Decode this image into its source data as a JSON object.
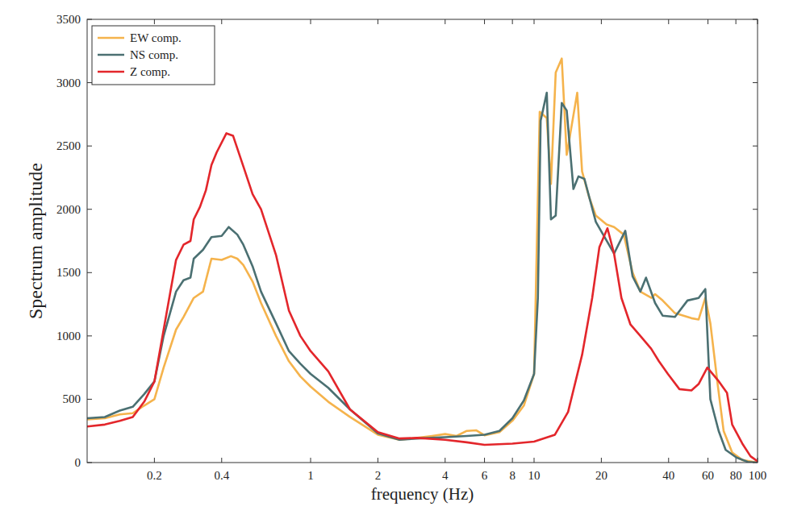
{
  "chart_data": {
    "type": "line",
    "xlabel": "frequency (Hz)",
    "ylabel": "Spectrum amplitude",
    "log": "x",
    "grid": false,
    "legend": "upper left",
    "xlim": [
      0.1,
      100
    ],
    "ylim": [
      0,
      3500
    ],
    "xticks": [
      0.2,
      0.4,
      1,
      2,
      4,
      6,
      8,
      10,
      20,
      40,
      60,
      80,
      100
    ],
    "yticks": [
      0,
      500,
      1000,
      1500,
      2000,
      2500,
      3000,
      3500
    ],
    "series": [
      {
        "name": "EW comp.",
        "color": "#f5b34c",
        "x": [
          0.1,
          0.12,
          0.14,
          0.16,
          0.18,
          0.2,
          0.22,
          0.25,
          0.27,
          0.3,
          0.33,
          0.36,
          0.4,
          0.44,
          0.47,
          0.5,
          0.55,
          0.6,
          0.7,
          0.8,
          0.9,
          1,
          1.2,
          1.5,
          2,
          2.5,
          3,
          3.5,
          4,
          4.5,
          5,
          5.5,
          6,
          7,
          8,
          9,
          10,
          10.6,
          11.4,
          11.9,
          12.5,
          13.3,
          14.0,
          15.6,
          16.4,
          17.6,
          18.9,
          21.1,
          22.8,
          25.2,
          27.6,
          29.9,
          33.5,
          34.8,
          37.6,
          42.7,
          50.6,
          54.5,
          58.4,
          61.5,
          66.5,
          70.5,
          77,
          85.5,
          100
        ],
        "values": [
          340,
          350,
          380,
          390,
          450,
          500,
          750,
          1050,
          1150,
          1300,
          1350,
          1610,
          1600,
          1630,
          1610,
          1560,
          1430,
          1260,
          1000,
          800,
          680,
          600,
          480,
          360,
          220,
          180,
          195,
          210,
          225,
          210,
          250,
          255,
          215,
          240,
          330,
          450,
          700,
          2770,
          2720,
          2200,
          3080,
          3190,
          2430,
          2920,
          2300,
          2100,
          1950,
          1880,
          1860,
          1800,
          1500,
          1350,
          1300,
          1330,
          1280,
          1180,
          1140,
          1130,
          1300,
          1100,
          600,
          250,
          80,
          20,
          0
        ]
      },
      {
        "name": "NS comp.",
        "color": "#4b7072",
        "x": [
          0.1,
          0.12,
          0.14,
          0.16,
          0.18,
          0.2,
          0.22,
          0.25,
          0.27,
          0.29,
          0.3,
          0.33,
          0.36,
          0.4,
          0.43,
          0.47,
          0.5,
          0.55,
          0.6,
          0.7,
          0.8,
          0.9,
          1,
          1.2,
          1.5,
          2,
          2.5,
          3,
          4,
          5,
          6,
          7,
          8,
          9,
          10,
          10.4,
          10.7,
          11.4,
          11.9,
          12.5,
          13.3,
          14.0,
          15.0,
          15.8,
          16.8,
          18.9,
          22.8,
          25.6,
          27.6,
          29.9,
          31.7,
          34.8,
          37.6,
          42.7,
          48.6,
          54.5,
          58.4,
          61.5,
          67,
          72,
          80.5,
          90.5,
          100
        ],
        "values": [
          350,
          360,
          410,
          440,
          540,
          640,
          1000,
          1350,
          1440,
          1460,
          1610,
          1680,
          1780,
          1790,
          1860,
          1800,
          1720,
          1550,
          1350,
          1100,
          880,
          780,
          700,
          590,
          420,
          230,
          180,
          190,
          200,
          210,
          220,
          250,
          350,
          490,
          700,
          1300,
          2700,
          2920,
          1920,
          1950,
          2840,
          2780,
          2160,
          2260,
          2240,
          1900,
          1650,
          1830,
          1470,
          1350,
          1460,
          1260,
          1160,
          1150,
          1280,
          1300,
          1370,
          500,
          250,
          100,
          40,
          5,
          0
        ]
      },
      {
        "name": "Z comp.",
        "color": "#e3262b",
        "x": [
          0.1,
          0.12,
          0.14,
          0.16,
          0.18,
          0.2,
          0.22,
          0.25,
          0.27,
          0.29,
          0.3,
          0.32,
          0.34,
          0.36,
          0.38,
          0.42,
          0.45,
          0.5,
          0.55,
          0.6,
          0.7,
          0.8,
          0.9,
          1,
          1.2,
          1.5,
          2,
          2.5,
          3,
          4,
          5,
          6,
          8,
          10,
          12.4,
          14.2,
          16.4,
          18.2,
          19.6,
          21.3,
          22.8,
          24.6,
          27,
          29.9,
          33.4,
          36.2,
          39.7,
          44.7,
          50.6,
          54.5,
          59.6,
          66.5,
          73,
          77,
          85.5,
          93,
          100
        ],
        "values": [
          285,
          300,
          330,
          360,
          480,
          640,
          1050,
          1600,
          1720,
          1750,
          1920,
          2020,
          2150,
          2350,
          2450,
          2600,
          2580,
          2340,
          2120,
          2000,
          1640,
          1200,
          1000,
          880,
          720,
          420,
          240,
          190,
          195,
          180,
          160,
          140,
          150,
          165,
          220,
          400,
          850,
          1300,
          1700,
          1850,
          1650,
          1300,
          1090,
          1000,
          900,
          800,
          700,
          580,
          570,
          620,
          750,
          650,
          550,
          300,
          150,
          50,
          10
        ]
      }
    ]
  }
}
